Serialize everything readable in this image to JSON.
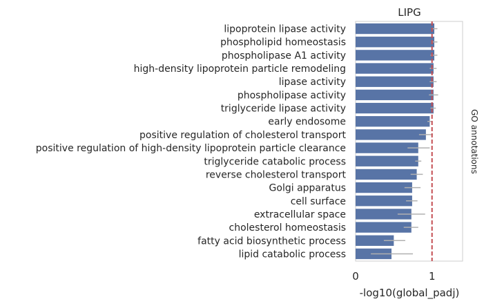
{
  "chart_data": {
    "type": "bar",
    "orientation": "horizontal",
    "title": "LIPG",
    "xlabel": "-log10(global_padj)",
    "side_label": "GO annotations",
    "xlim": [
      0,
      1.4
    ],
    "xticks": [
      {
        "value": 0,
        "label": "0"
      },
      {
        "value": 1,
        "label": "1"
      }
    ],
    "reference_line": {
      "value": 1,
      "color": "#c44e52",
      "style": "dashed"
    },
    "bar_color": "#5874a6",
    "error_color": "#b0b0b0",
    "grid": false,
    "categories": [
      "lipoprotein lipase activity",
      "phospholipid homeostasis",
      "phospholipase A1 activity",
      "high-density lipoprotein particle remodeling",
      "lipase activity",
      "phospholipase activity",
      "triglyceride lipase activity",
      "early endosome",
      "positive regulation of cholesterol transport",
      "positive regulation of high-density lipoprotein particle clearance",
      "triglyceride catabolic process",
      "reverse cholesterol transport",
      "Golgi apparatus",
      "cell surface",
      "extracellular space",
      "cholesterol homeostasis",
      "fatty acid biosynthetic process",
      "lipid catabolic process"
    ],
    "values": [
      1.03,
      1.03,
      1.03,
      1.02,
      1.02,
      1.02,
      1.02,
      0.97,
      0.92,
      0.82,
      0.82,
      0.8,
      0.74,
      0.74,
      0.73,
      0.73,
      0.5,
      0.47
    ],
    "error_low": [
      0.99,
      0.99,
      0.98,
      0.97,
      0.97,
      0.96,
      0.98,
      0.94,
      0.83,
      0.68,
      0.78,
      0.72,
      0.64,
      0.66,
      0.55,
      0.63,
      0.37,
      0.2
    ],
    "error_high": [
      1.07,
      1.07,
      1.07,
      1.06,
      1.06,
      1.08,
      1.05,
      1.0,
      1.01,
      0.97,
      0.86,
      0.88,
      0.85,
      0.81,
      0.91,
      0.82,
      0.65,
      0.75
    ]
  }
}
